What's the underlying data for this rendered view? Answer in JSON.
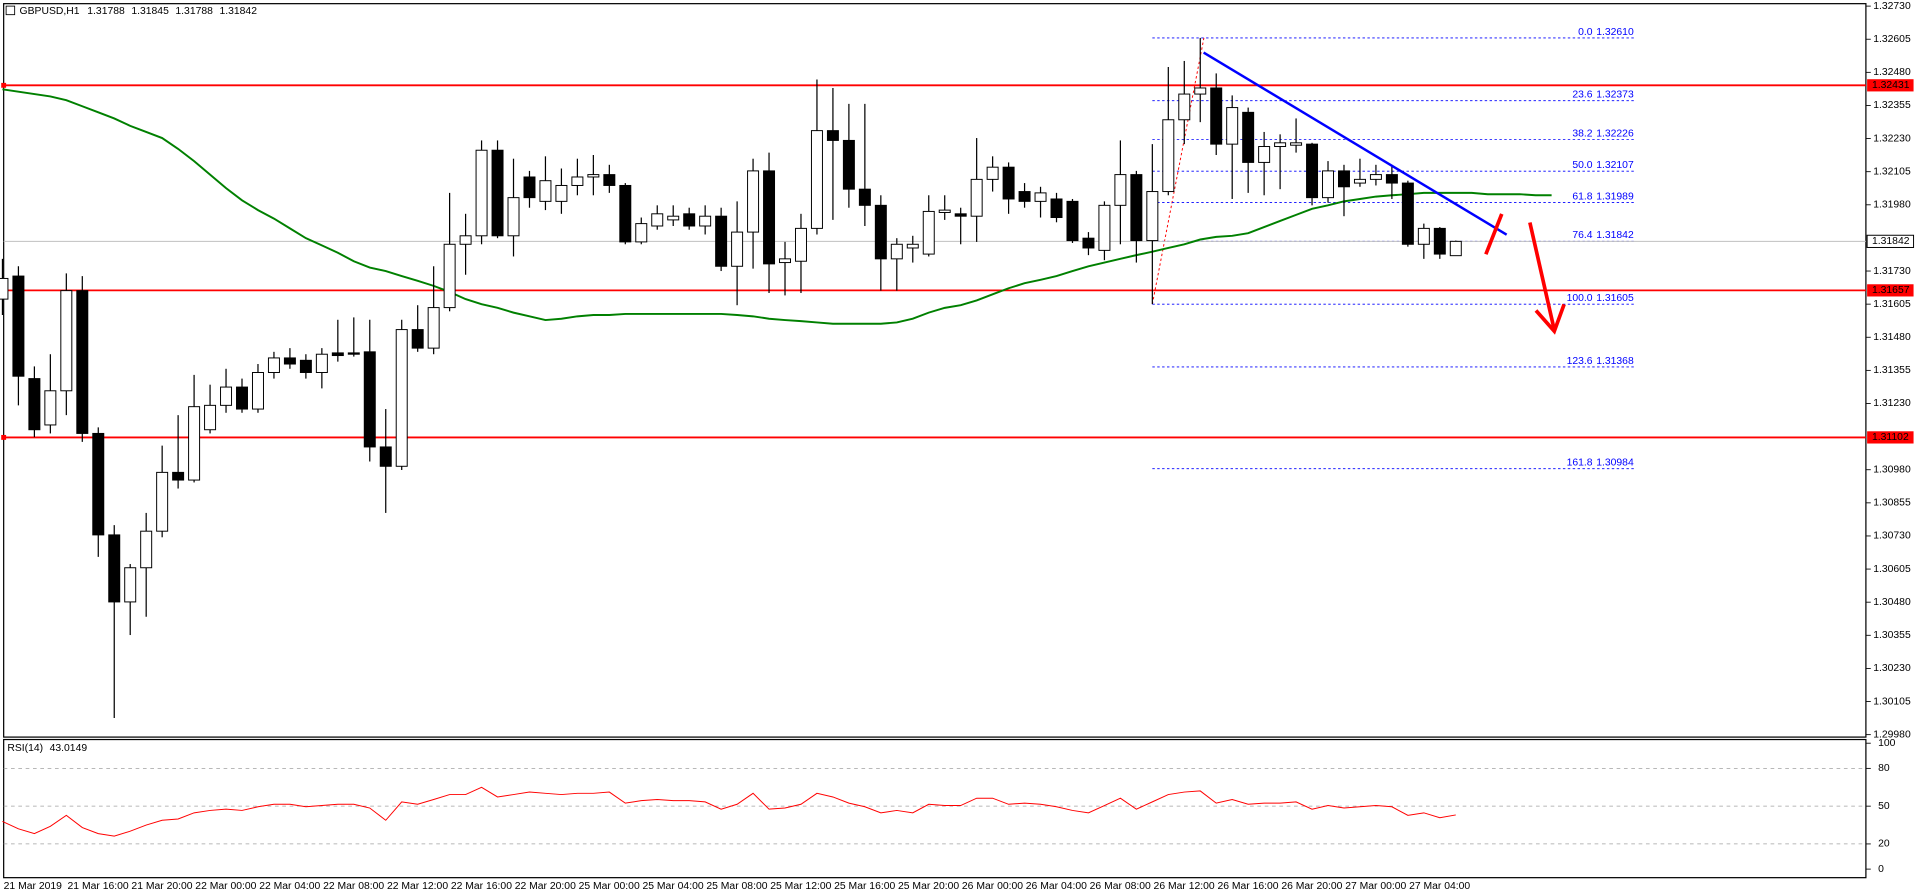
{
  "chart_data": {
    "type": "candlestick",
    "symbol": "GBPUSD,H1",
    "up_color": "#ffffff",
    "down_color": "#000000",
    "categories": [
      "21 Mar 2019",
      null,
      null,
      null,
      "21 Mar 16:00",
      null,
      null,
      null,
      "21 Mar 20:00",
      null,
      null,
      null,
      "22 Mar 00:00",
      null,
      null,
      null,
      "22 Mar 04:00",
      null,
      null,
      null,
      "22 Mar 08:00",
      null,
      null,
      null,
      "22 Mar 12:00",
      null,
      null,
      null,
      "22 Mar 16:00",
      null,
      null,
      null,
      "22 Mar 20:00",
      null,
      null,
      null,
      "25 Mar 00:00",
      null,
      null,
      null,
      "25 Mar 04:00",
      null,
      null,
      null,
      "25 Mar 08:00",
      null,
      null,
      null,
      "25 Mar 12:00",
      null,
      null,
      null,
      "25 Mar 16:00",
      null,
      null,
      null,
      "25 Mar 20:00",
      null,
      null,
      null,
      "26 Mar 00:00",
      null,
      null,
      null,
      "26 Mar 04:00",
      null,
      null,
      null,
      "26 Mar 08:00",
      null,
      null,
      null,
      "26 Mar 12:00",
      null,
      null,
      null,
      "26 Mar 16:00",
      null,
      null,
      null,
      "26 Mar 20:00",
      null,
      null,
      null,
      "27 Mar 00:00",
      null,
      null,
      null,
      "27 Mar 04:00",
      null,
      null,
      null,
      null,
      null,
      null,
      null,
      null,
      null
    ],
    "ohlc": [
      [
        1.31624,
        1.31776,
        1.31564,
        1.31702
      ],
      [
        1.31711,
        1.31748,
        1.31223,
        1.31333
      ],
      [
        1.31324,
        1.3137,
        1.31103,
        1.31131
      ],
      [
        1.31149,
        1.31416,
        1.31117,
        1.31278
      ],
      [
        1.31278,
        1.31721,
        1.31186,
        1.31656
      ],
      [
        1.31656,
        1.31711,
        1.31085,
        1.31117
      ],
      [
        1.31117,
        1.3114,
        1.30651,
        1.30734
      ],
      [
        1.30734,
        1.30771,
        1.30043,
        1.30481
      ],
      [
        1.30481,
        1.30624,
        1.30356,
        1.3061
      ],
      [
        1.3061,
        1.30817,
        1.30425,
        1.30748
      ],
      [
        1.30748,
        1.31071,
        1.30725,
        1.3097
      ],
      [
        1.3097,
        1.31186,
        1.30909,
        1.30941
      ],
      [
        1.30941,
        1.31338,
        1.30932,
        1.31218
      ],
      [
        1.31131,
        1.31301,
        1.31117,
        1.31223
      ],
      [
        1.31223,
        1.31361,
        1.31195,
        1.31292
      ],
      [
        1.31292,
        1.31324,
        1.31195,
        1.31209
      ],
      [
        1.31209,
        1.31379,
        1.31195,
        1.31347
      ],
      [
        1.31347,
        1.31425,
        1.31324,
        1.31402
      ],
      [
        1.31402,
        1.31439,
        1.31361,
        1.31379
      ],
      [
        1.31393,
        1.31416,
        1.31324,
        1.31347
      ],
      [
        1.31347,
        1.31439,
        1.31287,
        1.31416
      ],
      [
        1.31421,
        1.31546,
        1.31388,
        1.31411
      ],
      [
        1.31421,
        1.31555,
        1.31407,
        1.31416
      ],
      [
        1.31425,
        1.31546,
        1.31011,
        1.31066
      ],
      [
        1.31066,
        1.31209,
        1.30817,
        1.30993
      ],
      [
        1.30993,
        1.31546,
        1.30979,
        1.31509
      ],
      [
        1.31509,
        1.31601,
        1.31425,
        1.31439
      ],
      [
        1.31439,
        1.31748,
        1.31416,
        1.31592
      ],
      [
        1.31592,
        1.32025,
        1.31578,
        1.31831
      ],
      [
        1.31831,
        1.31946,
        1.31716,
        1.31863
      ],
      [
        1.31863,
        1.32223,
        1.31831,
        1.32186
      ],
      [
        1.32186,
        1.32223,
        1.31854,
        1.31863
      ],
      [
        1.31863,
        1.32154,
        1.31785,
        1.32007
      ],
      [
        1.32085,
        1.32108,
        1.31969,
        1.32007
      ],
      [
        1.31993,
        1.32163,
        1.3196,
        1.32071
      ],
      [
        1.31993,
        1.32117,
        1.31946,
        1.32053
      ],
      [
        1.32053,
        1.32154,
        1.32016,
        1.32085
      ],
      [
        1.32085,
        1.32168,
        1.32016,
        1.32094
      ],
      [
        1.32094,
        1.32131,
        1.32025,
        1.32053
      ],
      [
        1.32053,
        1.32062,
        1.31831,
        1.3184
      ],
      [
        1.3184,
        1.31932,
        1.31831,
        1.31909
      ],
      [
        1.319,
        1.31978,
        1.31886,
        1.31946
      ],
      [
        1.31923,
        1.31978,
        1.319,
        1.31937
      ],
      [
        1.31946,
        1.31969,
        1.31886,
        1.319
      ],
      [
        1.319,
        1.31978,
        1.31868,
        1.31937
      ],
      [
        1.31937,
        1.31969,
        1.3173,
        1.31748
      ],
      [
        1.31748,
        1.31993,
        1.31601,
        1.31877
      ],
      [
        1.31877,
        1.32154,
        1.31739,
        1.32108
      ],
      [
        1.32108,
        1.32177,
        1.31647,
        1.31757
      ],
      [
        1.31762,
        1.3184,
        1.31638,
        1.31776
      ],
      [
        1.31767,
        1.31946,
        1.31647,
        1.31891
      ],
      [
        1.31891,
        1.32453,
        1.31868,
        1.3226
      ],
      [
        1.3226,
        1.32421,
        1.31923,
        1.32223
      ],
      [
        1.32223,
        1.32361,
        1.31969,
        1.32039
      ],
      [
        1.32039,
        1.32361,
        1.319,
        1.31978
      ],
      [
        1.31978,
        1.32016,
        1.31656,
        1.31776
      ],
      [
        1.31776,
        1.31854,
        1.31656,
        1.31831
      ],
      [
        1.31817,
        1.31863,
        1.31762,
        1.31831
      ],
      [
        1.31794,
        1.32016,
        1.31785,
        1.31955
      ],
      [
        1.31951,
        1.32016,
        1.31923,
        1.3196
      ],
      [
        1.31946,
        1.31969,
        1.31831,
        1.31937
      ],
      [
        1.31937,
        1.32232,
        1.3184,
        1.32076
      ],
      [
        1.32076,
        1.32163,
        1.3203,
        1.32122
      ],
      [
        1.32122,
        1.3214,
        1.31946,
        1.32002
      ],
      [
        1.3203,
        1.32062,
        1.31969,
        1.31993
      ],
      [
        1.31993,
        1.32048,
        1.31932,
        1.32025
      ],
      [
        1.32002,
        1.32025,
        1.31914,
        1.31932
      ],
      [
        1.31993,
        1.32002,
        1.31836,
        1.31845
      ],
      [
        1.31854,
        1.31877,
        1.3179,
        1.31817
      ],
      [
        1.31808,
        1.31993,
        1.31771,
        1.31978
      ],
      [
        1.31978,
        1.32223,
        1.31831,
        1.32094
      ],
      [
        1.32094,
        1.32108,
        1.31762,
        1.31845
      ],
      [
        1.31845,
        1.32209,
        1.31605,
        1.3203
      ],
      [
        1.3203,
        1.325,
        1.32016,
        1.32301
      ],
      [
        1.32301,
        1.32523,
        1.32209,
        1.32398
      ],
      [
        1.32398,
        1.3261,
        1.32292,
        1.32421
      ],
      [
        1.32421,
        1.32476,
        1.32168,
        1.32209
      ],
      [
        1.32209,
        1.32393,
        1.32002,
        1.32347
      ],
      [
        1.32329,
        1.32347,
        1.32025,
        1.3214
      ],
      [
        1.3214,
        1.32255,
        1.32016,
        1.322
      ],
      [
        1.322,
        1.32246,
        1.32039,
        1.32214
      ],
      [
        1.32205,
        1.32306,
        1.32177,
        1.32214
      ],
      [
        1.32209,
        1.32214,
        1.31978,
        1.32007
      ],
      [
        1.32007,
        1.32145,
        1.31988,
        1.32108
      ],
      [
        1.32108,
        1.32131,
        1.31937,
        1.32048
      ],
      [
        1.32062,
        1.32154,
        1.32048,
        1.32076
      ],
      [
        1.32076,
        1.32131,
        1.32053,
        1.32094
      ],
      [
        1.32094,
        1.32131,
        1.32002,
        1.32062
      ],
      [
        1.32062,
        1.32071,
        1.31822,
        1.31831
      ],
      [
        1.31831,
        1.31909,
        1.31776,
        1.31891
      ],
      [
        1.31891,
        1.31896,
        1.31776,
        1.31794
      ],
      [
        1.31788,
        1.31845,
        1.31788,
        1.31842
      ],
      null,
      null,
      null,
      null,
      null,
      null
    ],
    "ylim": [
      1.2998,
      1.3273
    ],
    "yticks": [
      {
        "value": 1.3273,
        "label": "1.32730"
      },
      1.32605,
      {
        "value": 1.3248,
        "label": "1.32480"
      },
      1.32355,
      {
        "value": 1.3223,
        "label": "1.32230"
      },
      1.32105,
      {
        "value": 1.3198,
        "label": "1.31980"
      },
      {
        "value": 1.3173,
        "label": "1.31730"
      },
      1.31605,
      {
        "value": 1.3148,
        "label": "1.31480"
      },
      1.31355,
      {
        "value": 1.3123,
        "label": "1.31230"
      },
      {
        "value": 1.3098,
        "label": "1.30980"
      },
      1.30855,
      {
        "value": 1.3073,
        "label": "1.30730"
      },
      1.30605,
      {
        "value": 1.3048,
        "label": "1.30480"
      },
      1.30355,
      {
        "value": 1.3023,
        "label": "1.30230"
      },
      1.30105,
      {
        "value": 1.2998,
        "label": "1.29980"
      }
    ],
    "grid": false,
    "ma": {
      "color": "#008000",
      "values": [
        1.32416,
        1.32407,
        1.32398,
        1.32389,
        1.32375,
        1.32352,
        1.32329,
        1.32306,
        1.32278,
        1.32255,
        1.32232,
        1.32191,
        1.32145,
        1.32094,
        1.32043,
        1.31997,
        1.3196,
        1.31928,
        1.31891,
        1.31854,
        1.31827,
        1.31799,
        1.31767,
        1.31743,
        1.3173,
        1.31711,
        1.31693,
        1.31674,
        1.31651,
        1.31624,
        1.31605,
        1.31591,
        1.31573,
        1.31559,
        1.31545,
        1.3155,
        1.31559,
        1.31564,
        1.31564,
        1.31568,
        1.31568,
        1.31568,
        1.31568,
        1.31568,
        1.31568,
        1.31568,
        1.31564,
        1.31559,
        1.3155,
        1.31545,
        1.31541,
        1.31536,
        1.31531,
        1.31531,
        1.31531,
        1.31531,
        1.31536,
        1.3155,
        1.31573,
        1.31591,
        1.31601,
        1.31619,
        1.31642,
        1.31665,
        1.31684,
        1.31697,
        1.31711,
        1.3173,
        1.31748,
        1.31762,
        1.31776,
        1.3179,
        1.31803,
        1.31817,
        1.31831,
        1.31849,
        1.31859,
        1.31863,
        1.31873,
        1.31896,
        1.31919,
        1.31942,
        1.31965,
        1.31978,
        1.31993,
        1.32002,
        1.32011,
        1.32016,
        1.3202,
        1.32025,
        1.32025,
        1.32025,
        1.32025,
        1.3202,
        1.3202,
        1.3202,
        1.32016,
        1.32016
      ]
    },
    "hlines": {
      "color": "#ff0000",
      "values": [
        1.32431,
        1.31657,
        1.31102
      ]
    },
    "fibonacci": {
      "color": "#0000ff",
      "levels": [
        "0.0",
        "23.6",
        "38.2",
        "50.0",
        "61.8",
        "76.4",
        "100.0",
        "123.6",
        "161.8"
      ],
      "values": [
        1.3261,
        1.32373,
        1.32226,
        1.32107,
        1.31989,
        1.31842,
        1.31605,
        1.31368,
        1.30984
      ],
      "value_labels": [
        "1.32610",
        "1.32373",
        "1.32226",
        "1.32107",
        "1.31989",
        "1.31842",
        "1.31605",
        "1.31368",
        "1.30984"
      ]
    },
    "rsi": {
      "title": "RSI(14)",
      "color": "#ff0000",
      "ylim": [
        0,
        100
      ],
      "yticks": [
        100,
        80,
        50,
        20,
        0
      ],
      "values": [
        37.9,
        32.0,
        28.2,
        34.0,
        42.7,
        33.0,
        28.2,
        26.2,
        30.1,
        35.0,
        38.8,
        39.8,
        44.7,
        46.6,
        47.6,
        46.6,
        49.5,
        51.5,
        51.5,
        49.5,
        50.5,
        51.5,
        51.5,
        48.5,
        38.8,
        53.4,
        51.5,
        55.3,
        59.2,
        59.2,
        65.0,
        57.3,
        59.2,
        61.2,
        60.2,
        59.2,
        60.2,
        60.2,
        61.2,
        52.4,
        54.4,
        55.3,
        54.4,
        54.4,
        53.4,
        47.6,
        51.5,
        60.2,
        47.6,
        48.5,
        51.5,
        60.2,
        57.3,
        52.4,
        49.5,
        44.7,
        46.6,
        44.7,
        51.5,
        50.5,
        50.5,
        56.3,
        56.3,
        51.5,
        52.4,
        51.5,
        49.5,
        46.6,
        44.7,
        50.5,
        56.3,
        47.6,
        53.4,
        59.2,
        61.2,
        62.1,
        52.4,
        55.3,
        51.5,
        52.4,
        52.4,
        53.4,
        47.6,
        50.5,
        48.5,
        49.5,
        50.5,
        49.5,
        42.7,
        44.7,
        40.8,
        43.0149,
        null,
        null,
        null,
        null,
        null,
        null
      ]
    }
  }
}
